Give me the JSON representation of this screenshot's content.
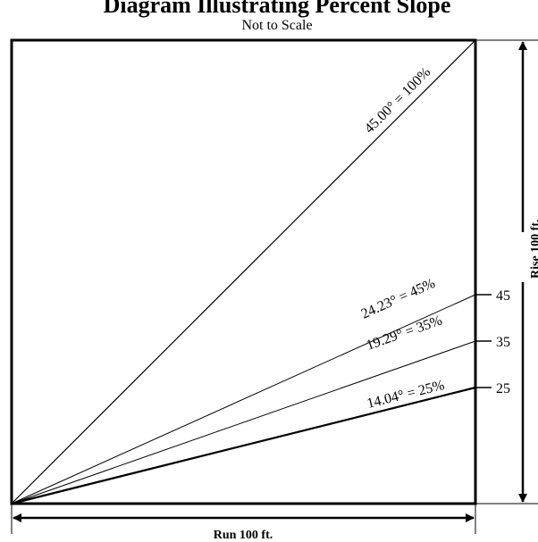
{
  "diagram": {
    "title": "Diagram Illustrating Percent Slope",
    "subtitle": "Not to Scale",
    "run_label": "Run 100 ft.",
    "rise_label": "Rise 100 ft.",
    "slopes": [
      {
        "label": "45.00° = 100%",
        "percent": 100,
        "degrees": 45.0
      },
      {
        "label": "24.23° = 45%",
        "percent": 45,
        "degrees": 24.23
      },
      {
        "label": "19.29° = 35%",
        "percent": 35,
        "degrees": 19.29
      },
      {
        "label": "14.04° = 25%",
        "percent": 25,
        "degrees": 14.04
      }
    ],
    "ticks": [
      "45",
      "35",
      "25"
    ]
  }
}
